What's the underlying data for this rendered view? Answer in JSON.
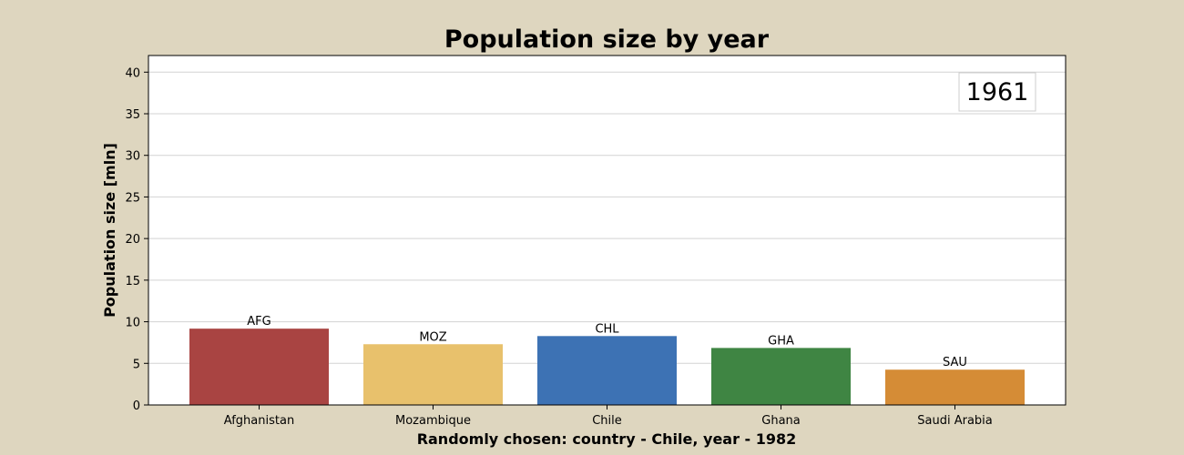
{
  "chart_data": {
    "type": "bar",
    "title": "Population size by year",
    "xlabel": "Randomly chosen: country - Chile, year - 1982",
    "ylabel": "Population size [mln]",
    "year_label": "1961",
    "categories": [
      "Afghanistan",
      "Mozambique",
      "Chile",
      "Ghana",
      "Saudi Arabia"
    ],
    "bar_labels": [
      "AFG",
      "MOZ",
      "CHL",
      "GHA",
      "SAU"
    ],
    "values": [
      9.17,
      7.3,
      8.28,
      6.85,
      4.24
    ],
    "colors": [
      "#a94442",
      "#e8c16c",
      "#3d72b4",
      "#3f8543",
      "#d58c36"
    ],
    "ylim": [
      0,
      42
    ],
    "yticks": [
      0,
      5,
      10,
      15,
      20,
      25,
      30,
      35,
      40
    ],
    "grid": "horizontal",
    "background": "#ded6bf",
    "plot_background": "#ffffff"
  }
}
